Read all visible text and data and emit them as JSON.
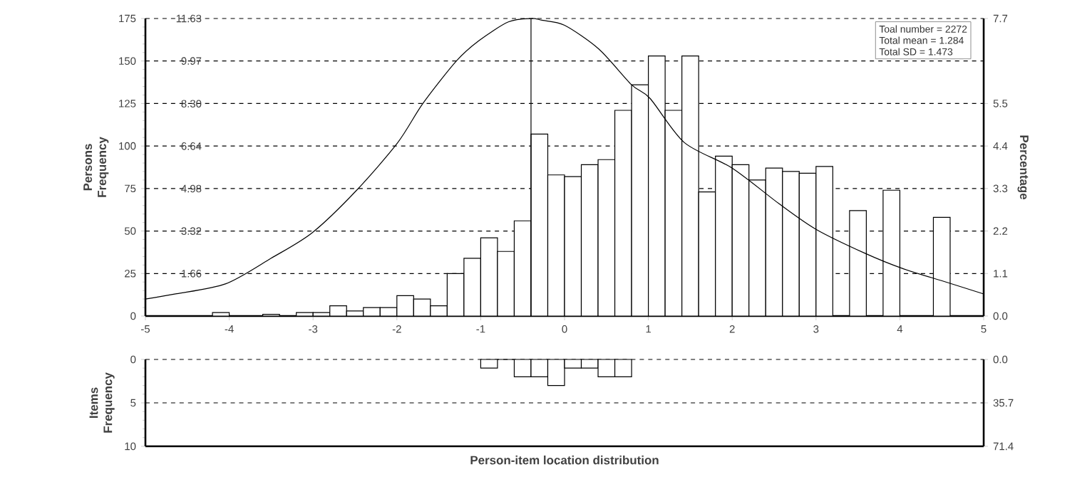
{
  "chart_data": [
    {
      "type": "histogram",
      "xlim": [
        -5,
        5
      ],
      "xticks": [
        -5,
        -4,
        -3,
        -2,
        -1,
        0,
        1,
        2,
        3,
        4,
        5
      ],
      "ylim": [
        0,
        175
      ],
      "yticks": [
        0,
        25,
        50,
        75,
        100,
        125,
        150,
        175
      ],
      "y2lim": [
        0,
        7.7
      ],
      "y2ticks": [
        {
          "value": 0,
          "label": "0.0"
        },
        1.1,
        2.2,
        3.3,
        4.4,
        5.5,
        7.7
      ],
      "y3lim": [
        0,
        11.63
      ],
      "y3ticks": [
        1.66,
        3.32,
        4.98,
        6.64,
        {
          "value": 8.3,
          "label": "8.30"
        },
        9.97,
        11.63
      ],
      "ylabel": "Persons Frequency",
      "y2label": "Percentage",
      "grid": "y",
      "series": [
        {
          "type": "histogram",
          "color": "#000000",
          "bins": [
            -4.2,
            -4.0,
            -3.8,
            -3.6,
            -3.4,
            -3.2,
            -3.0,
            -2.8,
            -2.6,
            -2.4,
            -2.2,
            -2.0,
            -1.8,
            -1.6,
            -1.4,
            -1.2,
            -1.0,
            -0.8,
            -0.6,
            -0.4,
            -0.2,
            0.0,
            0.2,
            0.4,
            0.6,
            0.8,
            1.0,
            1.2,
            1.4,
            1.6,
            1.8,
            2.0,
            2.2,
            2.4,
            2.6,
            2.8,
            3.0,
            3.2,
            3.4,
            3.6,
            3.8,
            4.0,
            4.2,
            4.4,
            4.6
          ],
          "values": [
            2,
            0,
            0,
            1,
            0,
            2,
            2,
            6,
            3,
            5,
            5,
            12,
            10,
            6,
            25,
            34,
            46,
            38,
            56,
            107,
            83,
            82,
            89,
            92,
            121,
            136,
            153,
            121,
            153,
            73,
            94,
            89,
            80,
            87,
            85,
            84,
            88,
            0,
            62,
            0,
            74,
            0,
            0,
            58
          ]
        },
        {
          "type": "line",
          "color": "#000000",
          "x": [
            -5,
            -4.64,
            -4.04,
            -3.5,
            -3.01,
            -2.48,
            -1.99,
            -1.69,
            -1.29,
            -1.02,
            -0.67,
            -0.4,
            -0.27,
            0,
            0.41,
            0.8,
            1.02,
            1.43,
            2.0,
            2.56,
            3.0,
            3.58,
            4.03,
            4.55,
            5
          ],
          "values": [
            10,
            13,
            19,
            34,
            49,
            74,
            102,
            125,
            150,
            162,
            173,
            175,
            174,
            171,
            157,
            136,
            128,
            102,
            87,
            66,
            51,
            37,
            28,
            20,
            13
          ]
        }
      ],
      "ref_lines": [
        {
          "axis": "x",
          "value": -0.4,
          "color": "#000000"
        }
      ],
      "annotations": [
        "Toal number = 2272",
        "Total mean = 1.284",
        "Total SD = 1.473"
      ]
    },
    {
      "type": "histogram",
      "xlim": [
        -5,
        5
      ],
      "ylim": [
        10,
        0
      ],
      "yticks": [
        0,
        5,
        10
      ],
      "y2lim": [
        71.4,
        0
      ],
      "y2ticks": [
        {
          "value": 0,
          "label": "0.0"
        },
        35.7,
        71.4
      ],
      "ylabel": "Items Frequency",
      "xlabel": "Person-item location distribution",
      "grid": "y",
      "tick_labels": "y",
      "color": "#000000",
      "bins": [
        -1.0,
        -0.8,
        -0.6,
        -0.4,
        -0.2,
        0.0,
        0.2,
        0.4,
        0.6,
        0.8
      ],
      "values": [
        1,
        0,
        2,
        2,
        3,
        1,
        1,
        2,
        2
      ]
    }
  ]
}
